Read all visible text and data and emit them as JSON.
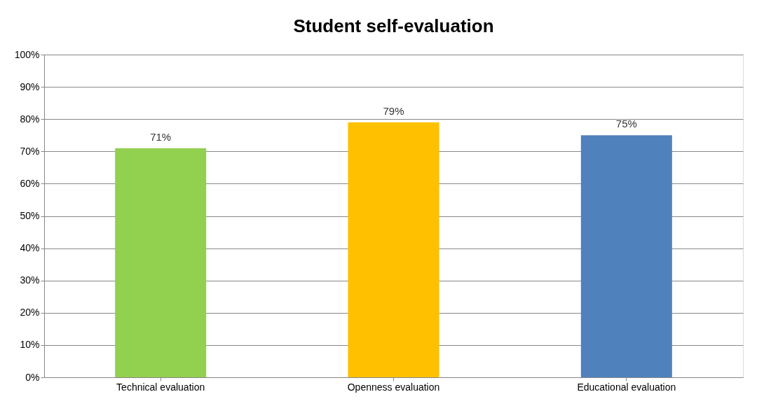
{
  "chart_data": {
    "type": "bar",
    "title": "Student self-evaluation",
    "categories": [
      "Technical evaluation",
      "Openness evaluation",
      "Educational evaluation"
    ],
    "values": [
      71,
      79,
      75
    ],
    "colors": [
      "#92d050",
      "#ffc000",
      "#4f81bd"
    ],
    "value_labels": [
      "71%",
      "79%",
      "75%"
    ],
    "ylim": [
      0,
      100
    ],
    "yticks": [
      {
        "value": 0,
        "label": "0%"
      },
      {
        "value": 10,
        "label": "10%"
      },
      {
        "value": 20,
        "label": "20%"
      },
      {
        "value": 30,
        "label": "30%"
      },
      {
        "value": 40,
        "label": "40%"
      },
      {
        "value": 50,
        "label": "50%"
      },
      {
        "value": 60,
        "label": "60%"
      },
      {
        "value": 70,
        "label": "70%"
      },
      {
        "value": 80,
        "label": "80%"
      },
      {
        "value": 90,
        "label": "90%"
      },
      {
        "value": 100,
        "label": "100%"
      }
    ],
    "grid": "y"
  }
}
